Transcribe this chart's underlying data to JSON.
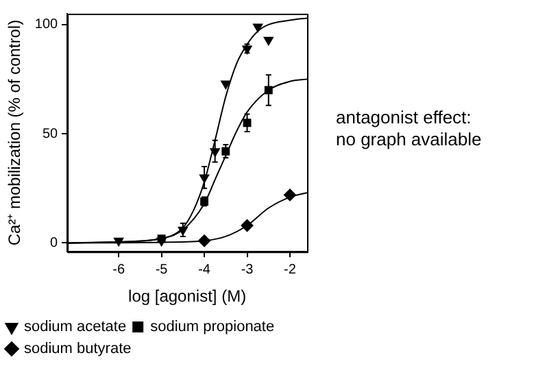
{
  "chart_data": {
    "type": "scatter",
    "xlabel": "log [agonist] (M)",
    "ylabel": "Ca²⁺ mobilization (% of control)",
    "xlim": [
      -7.2,
      -1.6
    ],
    "ylim": [
      -4,
      105
    ],
    "xticks": [
      -6,
      -5,
      -4,
      -3,
      -2
    ],
    "yticks": [
      0,
      50,
      100
    ],
    "grid": false,
    "legend": "bottom",
    "annotations": [
      "antagonist effect:\nno graph available"
    ],
    "series": [
      {
        "name": "sodium acetate",
        "color": "#000000",
        "marker": "triangle",
        "x": [
          -6,
          -5,
          -4.5,
          -4,
          -3.75,
          -3.5,
          -3,
          -2.75,
          -2.5
        ],
        "values": [
          1,
          1,
          6,
          30,
          42,
          73,
          89,
          99,
          93
        ],
        "errors": [
          null,
          null,
          3,
          5,
          5,
          null,
          2,
          null,
          null
        ]
      },
      {
        "name": "sodium propionate",
        "color": "#000000",
        "marker": "square",
        "x": [
          -5,
          -4,
          -3.5,
          -3,
          -2.5
        ],
        "values": [
          2,
          19,
          42,
          55,
          70
        ],
        "errors": [
          null,
          2,
          3,
          4,
          7
        ]
      },
      {
        "name": "sodium butyrate",
        "color": "#000000",
        "marker": "diamond",
        "x": [
          -4,
          -3,
          -2
        ],
        "values": [
          1,
          8,
          22
        ]
      },
      {
        "type": "line",
        "color": "#000000",
        "x": [
          -7.2,
          -6,
          -5,
          -4.5,
          -4.25,
          -4,
          -3.75,
          -3.5,
          -3.25,
          -3,
          -2.75,
          -2.5,
          -2,
          -1.6
        ],
        "values": [
          0,
          0.5,
          2,
          7,
          15,
          28,
          47,
          67,
          82,
          91,
          97,
          100,
          102,
          103
        ]
      },
      {
        "type": "line",
        "color": "#000000",
        "x": [
          -7.2,
          -6,
          -5,
          -4.5,
          -4,
          -3.75,
          -3.5,
          -3.25,
          -3,
          -2.5,
          -2,
          -1.6
        ],
        "values": [
          0,
          0.5,
          2,
          6,
          18,
          29,
          40,
          51,
          60,
          70,
          74,
          75
        ]
      },
      {
        "type": "line",
        "color": "#000000",
        "x": [
          -7.2,
          -5,
          -4,
          -3.5,
          -3,
          -2.5,
          -2,
          -1.6
        ],
        "values": [
          0,
          0.3,
          1,
          3,
          8,
          16,
          21,
          23
        ]
      }
    ]
  }
}
